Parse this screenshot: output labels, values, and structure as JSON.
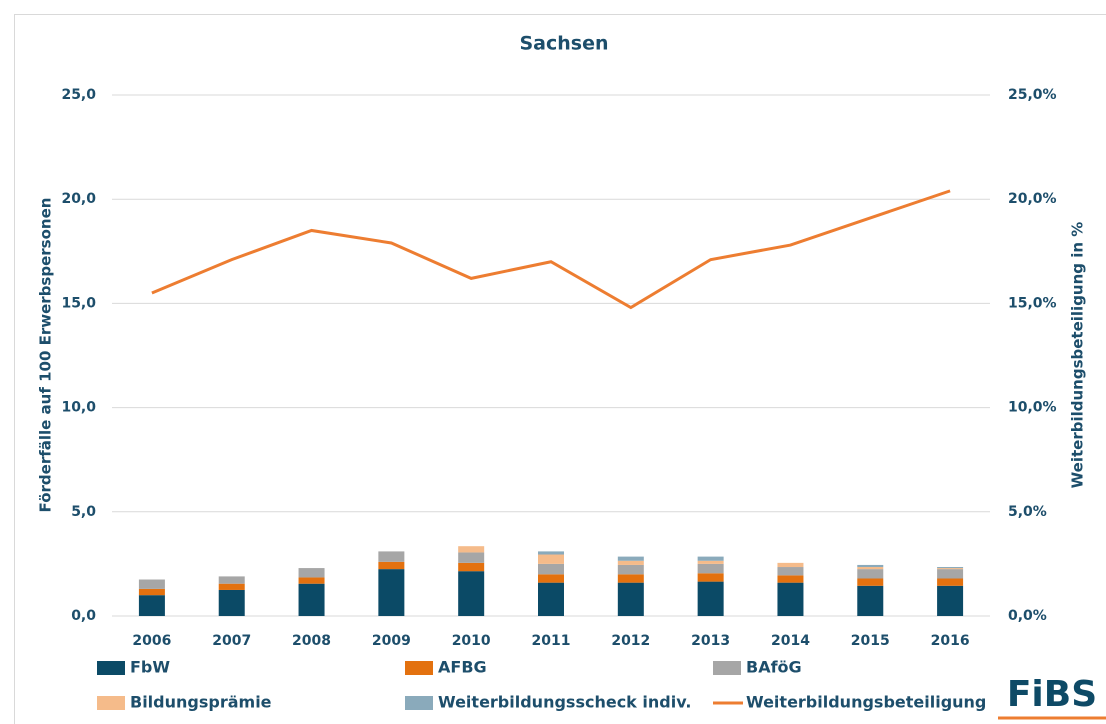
{
  "chart_data": {
    "type": "stacked_bar_line",
    "title": "Sachsen",
    "y_label": "Förderfälle auf 100 Erwerbspersonen",
    "y2_label": "Weiterbildungsbeteiligung in %",
    "logo": "FiBS",
    "categories": [
      "2006",
      "2007",
      "2008",
      "2009",
      "2010",
      "2011",
      "2012",
      "2013",
      "2014",
      "2015",
      "2016"
    ],
    "ylim": [
      0,
      25
    ],
    "yticks": [
      {
        "value": 0,
        "label": "0,0"
      },
      {
        "value": 5,
        "label": "5,0"
      },
      {
        "value": 10,
        "label": "10,0"
      },
      {
        "value": 15,
        "label": "15,0"
      },
      {
        "value": 20,
        "label": "20,0"
      },
      {
        "value": 25,
        "label": "25,0"
      }
    ],
    "y2lim": [
      0,
      25
    ],
    "y2ticks": [
      {
        "value": 0,
        "label": "0,0%"
      },
      {
        "value": 5,
        "label": "5,0%"
      },
      {
        "value": 10,
        "label": "10,0%"
      },
      {
        "value": 15,
        "label": "15,0%"
      },
      {
        "value": 20,
        "label": "20,0%"
      },
      {
        "value": 25,
        "label": "25,0%"
      }
    ],
    "grid": true,
    "series": [
      {
        "name": "FbW",
        "color": "#0b4a66",
        "kind": "bar",
        "values": [
          1.0,
          1.25,
          1.55,
          2.25,
          2.15,
          1.6,
          1.6,
          1.65,
          1.6,
          1.45,
          1.45
        ]
      },
      {
        "name": "AFBG",
        "color": "#e3710f",
        "kind": "bar",
        "values": [
          0.3,
          0.3,
          0.3,
          0.35,
          0.4,
          0.4,
          0.4,
          0.4,
          0.35,
          0.35,
          0.35
        ]
      },
      {
        "name": "BAföG",
        "color": "#a6a6a6",
        "kind": "bar",
        "values": [
          0.45,
          0.35,
          0.45,
          0.5,
          0.5,
          0.5,
          0.45,
          0.45,
          0.4,
          0.45,
          0.45
        ]
      },
      {
        "name": "Bildungsprämie",
        "color": "#f5bb8a",
        "kind": "bar",
        "values": [
          0,
          0,
          0,
          0,
          0.3,
          0.45,
          0.2,
          0.15,
          0.2,
          0.1,
          0.05
        ]
      },
      {
        "name": "Weiterbildungsscheck indiv.",
        "color": "#8aaabb",
        "kind": "bar",
        "values": [
          0,
          0,
          0,
          0,
          0,
          0.15,
          0.2,
          0.2,
          0,
          0.1,
          0.05
        ]
      },
      {
        "name": "Weiterbildungsbeteiligung",
        "color": "#ed7d31",
        "kind": "line",
        "axis": "y2",
        "values": [
          15.5,
          17.1,
          18.5,
          17.9,
          16.2,
          17.0,
          14.8,
          17.1,
          17.8,
          19.1,
          20.4
        ]
      }
    ]
  }
}
